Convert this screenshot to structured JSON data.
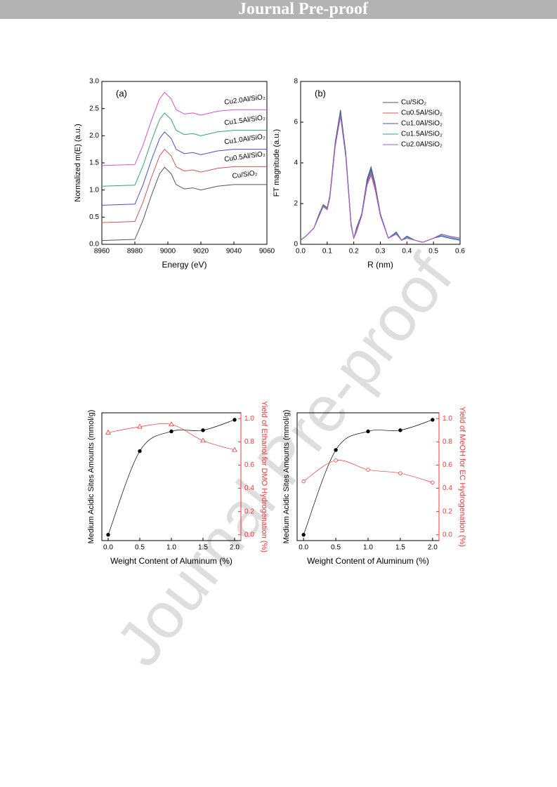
{
  "header": {
    "title": "Journal Pre-proof"
  },
  "watermark": "Journal Pre-proof",
  "chart_data": [
    {
      "type": "line",
      "panel_label": "(a)",
      "xlabel": "Energy (eV)",
      "ylabel": "Normalized m(E) (a.u.)",
      "xlim": [
        8960,
        9060
      ],
      "ylim": [
        0,
        3.0
      ],
      "xticks": [
        8960,
        8980,
        9000,
        9020,
        9040,
        9060
      ],
      "yticks": [
        {
          "value": 0,
          "label": "0.0"
        },
        {
          "value": 0.5,
          "label": "0.5"
        },
        {
          "value": 1,
          "label": "1.0"
        },
        {
          "value": 1.5,
          "label": "1.5"
        },
        {
          "value": 2,
          "label": "2.0"
        },
        {
          "value": 2.5,
          "label": "2.5"
        },
        {
          "value": 3,
          "label": "3.0"
        }
      ],
      "legend": "inline",
      "x": [
        8960,
        8980,
        8985,
        8990,
        8995,
        8998,
        9002,
        9005,
        9010,
        9015,
        9020,
        9030,
        9040,
        9050,
        9060
      ],
      "series": [
        {
          "name": "Cu/SiO₂",
          "color": "#555555",
          "values": [
            0.07,
            0.09,
            0.45,
            0.9,
            1.3,
            1.42,
            1.3,
            1.1,
            1.02,
            1.04,
            1.0,
            1.07,
            1.1,
            1.1,
            1.1
          ]
        },
        {
          "name": "Cu0.5Al/SiO₂",
          "color": "#d9534f",
          "values": [
            0.4,
            0.42,
            0.78,
            1.23,
            1.63,
            1.75,
            1.63,
            1.43,
            1.35,
            1.37,
            1.33,
            1.4,
            1.43,
            1.43,
            1.43
          ]
        },
        {
          "name": "Cu1.0Al/SiO₂",
          "color": "#4a4adf",
          "values": [
            0.72,
            0.74,
            1.1,
            1.55,
            1.95,
            2.07,
            1.95,
            1.75,
            1.67,
            1.69,
            1.65,
            1.72,
            1.75,
            1.75,
            1.75
          ]
        },
        {
          "name": "Cu1.5Al/SiO₂",
          "color": "#2ea86b",
          "values": [
            1.07,
            1.09,
            1.45,
            1.9,
            2.3,
            2.42,
            2.3,
            2.1,
            2.02,
            2.04,
            2.0,
            2.07,
            2.1,
            2.1,
            2.1
          ]
        },
        {
          "name": "Cu2.0Al/SiO₂",
          "color": "#d94fd9",
          "values": [
            1.45,
            1.47,
            1.83,
            2.28,
            2.68,
            2.8,
            2.68,
            2.48,
            2.4,
            2.42,
            2.38,
            2.45,
            2.48,
            2.48,
            2.48
          ]
        }
      ]
    },
    {
      "type": "line",
      "panel_label": "(b)",
      "xlabel": "R (nm)",
      "ylabel": "FT magnitude (a.u.)",
      "xlim": [
        0,
        0.6
      ],
      "ylim": [
        0,
        8
      ],
      "xticks": [
        {
          "value": 0,
          "label": "0.0"
        },
        {
          "value": 0.1,
          "label": "0.1"
        },
        {
          "value": 0.2,
          "label": "0.2"
        },
        {
          "value": 0.3,
          "label": "0.3"
        },
        {
          "value": 0.4,
          "label": "0.4"
        },
        {
          "value": 0.5,
          "label": "0.5"
        },
        {
          "value": 0.6,
          "label": "0.6"
        }
      ],
      "yticks": [
        0,
        2,
        4,
        6,
        8
      ],
      "legend": "upper right",
      "x": [
        0,
        0.02,
        0.05,
        0.07,
        0.085,
        0.1,
        0.11,
        0.13,
        0.15,
        0.17,
        0.19,
        0.2,
        0.21,
        0.23,
        0.25,
        0.265,
        0.28,
        0.3,
        0.33,
        0.36,
        0.38,
        0.4,
        0.43,
        0.46,
        0.5,
        0.53,
        0.56,
        0.6
      ],
      "series": [
        {
          "name": "Cu/SiO₂",
          "color": "#555555",
          "values": [
            0.2,
            0.4,
            0.8,
            1.5,
            1.95,
            1.8,
            2.4,
            5.0,
            6.6,
            4.5,
            1.0,
            0.3,
            0.8,
            1.5,
            3.2,
            3.8,
            3.0,
            1.5,
            0.3,
            0.6,
            0.2,
            0.4,
            0.2,
            0.1,
            0.3,
            0.4,
            0.3,
            0.2
          ]
        },
        {
          "name": "Cu0.5Al/SiO₂",
          "color": "#d9534f",
          "values": [
            0.2,
            0.4,
            0.8,
            1.4,
            1.85,
            1.7,
            2.3,
            4.8,
            6.3,
            4.3,
            0.9,
            0.3,
            0.6,
            1.4,
            2.9,
            3.4,
            2.7,
            1.4,
            0.3,
            0.5,
            0.2,
            0.3,
            0.2,
            0.1,
            0.3,
            0.5,
            0.4,
            0.3
          ]
        },
        {
          "name": "Cu1.0Al/SiO₂",
          "color": "#4a4adf",
          "values": [
            0.2,
            0.4,
            0.8,
            1.5,
            1.9,
            1.75,
            2.35,
            4.9,
            6.5,
            4.4,
            1.0,
            0.3,
            0.7,
            1.5,
            3.1,
            3.7,
            2.9,
            1.5,
            0.3,
            0.6,
            0.2,
            0.4,
            0.2,
            0.1,
            0.3,
            0.4,
            0.3,
            0.2
          ]
        },
        {
          "name": "Cu1.5Al/SiO₂",
          "color": "#2ea86b",
          "values": [
            0.2,
            0.4,
            0.8,
            1.45,
            1.9,
            1.75,
            2.3,
            4.85,
            6.4,
            4.35,
            0.95,
            0.3,
            0.7,
            1.45,
            3.0,
            3.6,
            2.85,
            1.45,
            0.3,
            0.55,
            0.2,
            0.35,
            0.2,
            0.1,
            0.3,
            0.45,
            0.35,
            0.25
          ]
        },
        {
          "name": "Cu2.0Al/SiO₂",
          "color": "#b84fd9",
          "values": [
            0.2,
            0.4,
            0.8,
            1.4,
            1.85,
            1.7,
            2.3,
            4.8,
            6.3,
            4.3,
            0.9,
            0.3,
            0.65,
            1.4,
            2.95,
            3.5,
            2.8,
            1.4,
            0.3,
            0.5,
            0.2,
            0.3,
            0.2,
            0.1,
            0.3,
            0.5,
            0.4,
            0.3
          ]
        }
      ]
    },
    {
      "type": "scatter",
      "xlabel": "Weight Content of Aluminum (%)",
      "ylabel": "Medium Acidic Sites Amounts (mmol/g)",
      "y2label": "Yield of Ethanol for DMO Hydrogenation (%)",
      "xlim": [
        -0.1,
        2.1
      ],
      "ylim": [
        -0.05,
        1.05
      ],
      "y2lim": [
        -0.05,
        1.05
      ],
      "y2color": "#ff3333",
      "fit": true,
      "xticks": [
        {
          "value": 0,
          "label": "0.0"
        },
        {
          "value": 0.5,
          "label": "0.5"
        },
        {
          "value": 1,
          "label": "1.0"
        },
        {
          "value": 1.5,
          "label": "1.5"
        },
        {
          "value": 2,
          "label": "2.0"
        }
      ],
      "y2ticks": [
        {
          "value": 0,
          "label": "0.0"
        },
        {
          "value": 0.2,
          "label": "0.2"
        },
        {
          "value": 0.4,
          "label": "0.4"
        },
        {
          "value": 0.6,
          "label": "0.6"
        },
        {
          "value": 0.8,
          "label": "0.8"
        },
        {
          "value": 1,
          "label": "1.0"
        }
      ],
      "x": [
        0,
        0.5,
        1,
        1.5,
        2
      ],
      "series": [
        {
          "color": "#000000",
          "marker": "circle",
          "filled": true,
          "values": [
            0.0,
            0.72,
            0.89,
            0.9,
            0.99
          ]
        },
        {
          "color": "#ff3333",
          "marker": "triangle",
          "filled": false,
          "axis": "y2",
          "values": [
            0.88,
            0.93,
            0.95,
            0.81,
            0.73
          ]
        }
      ]
    },
    {
      "type": "scatter",
      "xlabel": "Weight Content of Aluminum (%)",
      "ylabel": "Medium Acidic Sites Amounts (mmol/g)",
      "y2label": "Yield of MeOH for EC Hydrogenation (%)",
      "xlim": [
        -0.1,
        2.1
      ],
      "ylim": [
        -0.05,
        1.05
      ],
      "y2lim": [
        -0.05,
        1.05
      ],
      "y2color": "#ff3333",
      "fit": true,
      "xticks": [
        {
          "value": 0,
          "label": "0.0"
        },
        {
          "value": 0.5,
          "label": "0.5"
        },
        {
          "value": 1,
          "label": "1.0"
        },
        {
          "value": 1.5,
          "label": "1.5"
        },
        {
          "value": 2,
          "label": "2.0"
        }
      ],
      "y2ticks": [
        {
          "value": 0,
          "label": "0.0"
        },
        {
          "value": 0.2,
          "label": "0.2"
        },
        {
          "value": 0.4,
          "label": "0.4"
        },
        {
          "value": 0.6,
          "label": "0.6"
        },
        {
          "value": 0.8,
          "label": "0.8"
        },
        {
          "value": 1,
          "label": "1.0"
        }
      ],
      "x": [
        0,
        0.5,
        1,
        1.5,
        2
      ],
      "series": [
        {
          "color": "#000000",
          "marker": "circle",
          "filled": true,
          "values": [
            0.0,
            0.73,
            0.89,
            0.9,
            0.99
          ]
        },
        {
          "color": "#ff3333",
          "marker": "circle",
          "filled": false,
          "axis": "y2",
          "values": [
            0.46,
            0.64,
            0.56,
            0.53,
            0.45
          ]
        }
      ]
    }
  ]
}
